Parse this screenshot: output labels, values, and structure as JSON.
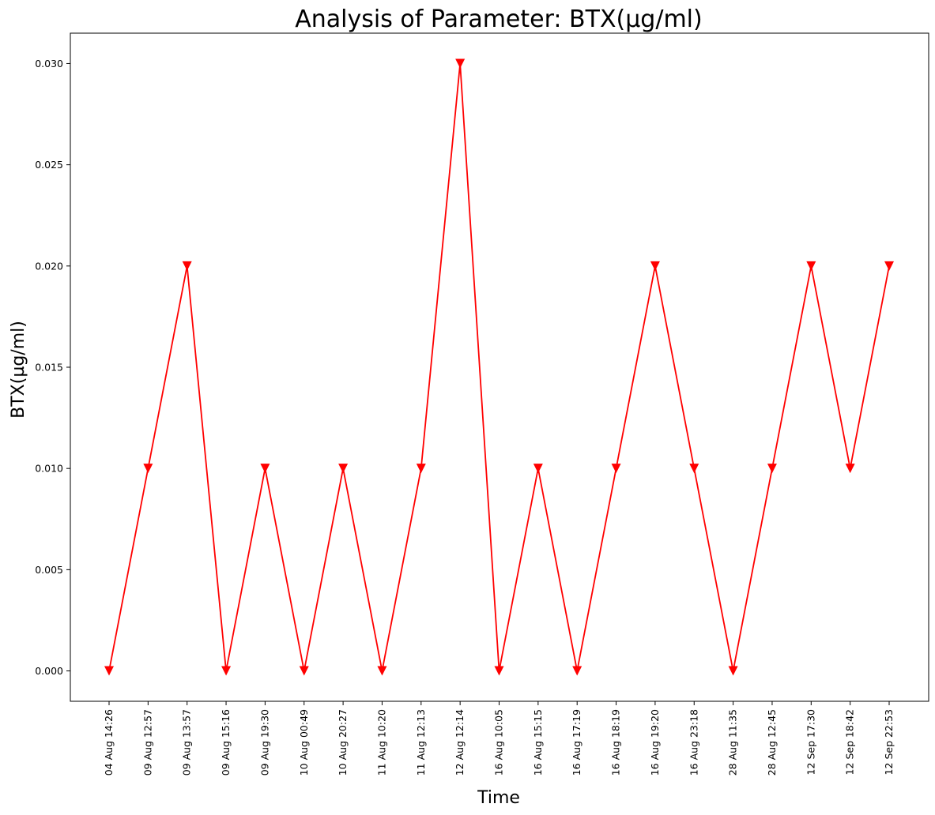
{
  "chart_data": {
    "type": "line",
    "title": "Analysis of Parameter: BTX(µg/ml)",
    "xlabel": "Time",
    "ylabel": "BTX(µg/ml)",
    "x": [
      "04 Aug 14:26",
      "09 Aug 12:57",
      "09 Aug 13:57",
      "09 Aug 15:16",
      "09 Aug 19:30",
      "10 Aug 00:49",
      "10 Aug 20:27",
      "11 Aug 10:20",
      "11 Aug 12:13",
      "12 Aug 12:14",
      "16 Aug 10:05",
      "16 Aug 15:15",
      "16 Aug 17:19",
      "16 Aug 18:19",
      "16 Aug 19:20",
      "16 Aug 23:18",
      "28 Aug 11:35",
      "28 Aug 12:45",
      "12 Sep 17:30",
      "12 Sep 18:42",
      "12 Sep 22:53"
    ],
    "series": [
      {
        "values": [
          0.0,
          0.01,
          0.02,
          0.0,
          0.01,
          0.0,
          0.01,
          0.0,
          0.01,
          0.03,
          0.0,
          0.01,
          0.0,
          0.01,
          0.02,
          0.01,
          0.0,
          0.01,
          0.02,
          0.01,
          0.02
        ],
        "color": "#ff0000",
        "marker": "triangle-down"
      }
    ],
    "ylim": [
      -0.0015,
      0.0315
    ],
    "yticks": [
      "0.000",
      "0.005",
      "0.010",
      "0.015",
      "0.020",
      "0.025",
      "0.030"
    ],
    "grid": false
  }
}
